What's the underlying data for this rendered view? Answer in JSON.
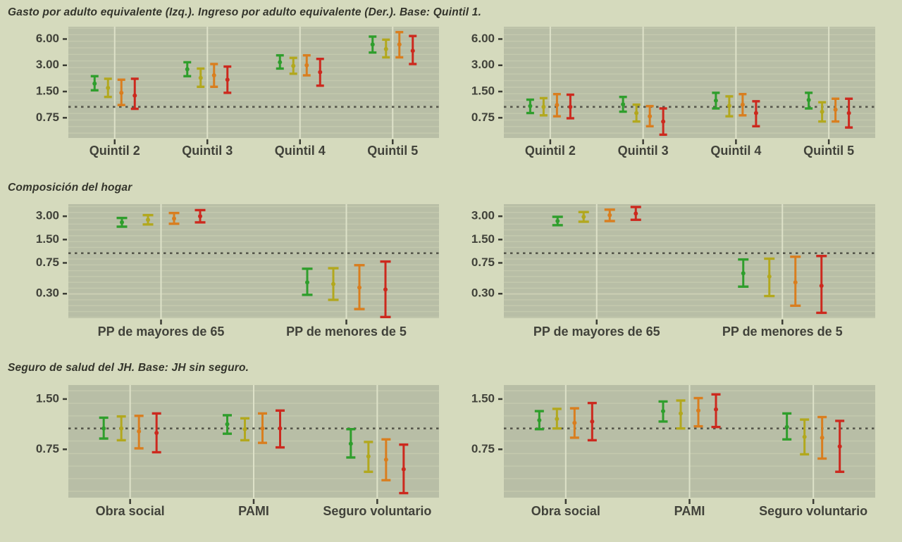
{
  "page": {
    "background": "#d5dabd"
  },
  "palette": {
    "panel_bg": "#b8bea6",
    "grid_minor": "#c4c9ae",
    "grid_major": "#cccfb4",
    "category_line": "#dde1c8",
    "ref_line": "#56574c",
    "tick_color": "#3c3d35",
    "axis_text_color": "#41423a",
    "title_color": "#33342b"
  },
  "series_colors": {
    "verde": "#2f9e2c",
    "amarillo": "#b2a81e",
    "naranja": "#d97e1f",
    "rojo": "#cc291e"
  },
  "chart_data": [
    {
      "type": "scatter",
      "title": "Gasto por adulto equivalente (Izq.). Ingreso por adulto equivalente (Der.). Base: Quintil 1.",
      "xlabel": "",
      "ylabel": "",
      "scale": "log2",
      "ylim": [
        0.44,
        8.3
      ],
      "ytick_values": [
        6.0,
        3.0,
        1.5,
        0.75
      ],
      "ytick_labels": [
        "6.00",
        "3.00",
        "1.50",
        "0.75"
      ],
      "ref_line": 1.0,
      "grid": true,
      "legend": "none",
      "categories": [
        "Quintil 2",
        "Quintil 3",
        "Quintil 4",
        "Quintil 5"
      ],
      "panels": [
        {
          "side": "left",
          "series": [
            {
              "name": "verde",
              "color": "#2f9e2c",
              "values": [
                [
                  1.85,
                  1.55,
                  2.25
                ],
                [
                  2.7,
                  2.25,
                  3.25
                ],
                [
                  3.25,
                  2.75,
                  3.9
                ],
                [
                  5.2,
                  4.2,
                  6.4
                ]
              ]
            },
            {
              "name": "amarillo",
              "color": "#b2a81e",
              "values": [
                [
                  1.65,
                  1.3,
                  2.1
                ],
                [
                  2.15,
                  1.7,
                  2.75
                ],
                [
                  2.95,
                  2.4,
                  3.65
                ],
                [
                  4.6,
                  3.7,
                  5.9
                ]
              ]
            },
            {
              "name": "naranja",
              "color": "#d97e1f",
              "values": [
                [
                  1.45,
                  1.05,
                  2.05
                ],
                [
                  2.3,
                  1.7,
                  3.1
                ],
                [
                  3.0,
                  2.3,
                  3.9
                ],
                [
                  5.2,
                  3.7,
                  7.2
                ]
              ]
            },
            {
              "name": "rojo",
              "color": "#cc291e",
              "values": [
                [
                  1.35,
                  0.95,
                  2.1
                ],
                [
                  2.05,
                  1.45,
                  2.9
                ],
                [
                  2.5,
                  1.75,
                  3.55
                ],
                [
                  4.4,
                  3.1,
                  6.5
                ]
              ]
            }
          ]
        },
        {
          "side": "right",
          "series": [
            {
              "name": "verde",
              "color": "#2f9e2c",
              "values": [
                [
                  1.02,
                  0.85,
                  1.21
                ],
                [
                  1.07,
                  0.88,
                  1.3
                ],
                [
                  1.18,
                  0.96,
                  1.45
                ],
                [
                  1.2,
                  0.96,
                  1.45
                ]
              ]
            },
            {
              "name": "amarillo",
              "color": "#b2a81e",
              "values": [
                [
                  1.0,
                  0.8,
                  1.26
                ],
                [
                  0.85,
                  0.68,
                  1.06
                ],
                [
                  1.03,
                  0.78,
                  1.32
                ],
                [
                  0.88,
                  0.68,
                  1.13
                ]
              ]
            },
            {
              "name": "naranja",
              "color": "#d97e1f",
              "values": [
                [
                  1.05,
                  0.78,
                  1.4
                ],
                [
                  0.78,
                  0.6,
                  1.02
                ],
                [
                  1.06,
                  0.8,
                  1.4
                ],
                [
                  0.93,
                  0.68,
                  1.24
                ]
              ]
            },
            {
              "name": "rojo",
              "color": "#cc291e",
              "values": [
                [
                  1.0,
                  0.74,
                  1.38
                ],
                [
                  0.68,
                  0.48,
                  0.96
                ],
                [
                  0.85,
                  0.6,
                  1.16
                ],
                [
                  0.85,
                  0.58,
                  1.24
                ]
              ]
            }
          ]
        }
      ]
    },
    {
      "type": "scatter",
      "title": "Composición del hogar",
      "xlabel": "",
      "ylabel": "",
      "scale": "log2",
      "ylim": [
        0.145,
        4.3
      ],
      "ytick_values": [
        3.0,
        1.5,
        0.75,
        0.3
      ],
      "ytick_labels": [
        "3.00",
        "1.50",
        "0.75",
        "0.30"
      ],
      "ref_line": 1.0,
      "grid": true,
      "legend": "none",
      "categories": [
        "PP de mayores de 65",
        "PP de menores de 5"
      ],
      "panels": [
        {
          "side": "left",
          "series": [
            {
              "name": "verde",
              "color": "#2f9e2c",
              "values": [
                [
                  2.5,
                  2.2,
                  2.85
                ],
                [
                  0.42,
                  0.29,
                  0.63
                ]
              ]
            },
            {
              "name": "amarillo",
              "color": "#b2a81e",
              "values": [
                [
                  2.7,
                  2.35,
                  3.1
                ],
                [
                  0.4,
                  0.25,
                  0.64
                ]
              ]
            },
            {
              "name": "naranja",
              "color": "#d97e1f",
              "values": [
                [
                  2.8,
                  2.4,
                  3.3
                ],
                [
                  0.36,
                  0.19,
                  0.7
                ]
              ]
            },
            {
              "name": "rojo",
              "color": "#cc291e",
              "values": [
                [
                  3.0,
                  2.5,
                  3.6
                ],
                [
                  0.34,
                  0.15,
                  0.78
                ]
              ]
            }
          ]
        },
        {
          "side": "right",
          "series": [
            {
              "name": "verde",
              "color": "#2f9e2c",
              "values": [
                [
                  2.6,
                  2.3,
                  2.95
                ],
                [
                  0.55,
                  0.37,
                  0.83
                ]
              ]
            },
            {
              "name": "amarillo",
              "color": "#b2a81e",
              "values": [
                [
                  2.95,
                  2.55,
                  3.4
                ],
                [
                  0.5,
                  0.28,
                  0.85
                ]
              ]
            },
            {
              "name": "naranja",
              "color": "#d97e1f",
              "values": [
                [
                  3.1,
                  2.6,
                  3.65
                ],
                [
                  0.42,
                  0.21,
                  0.9
                ]
              ]
            },
            {
              "name": "rojo",
              "color": "#cc291e",
              "values": [
                [
                  3.25,
                  2.7,
                  3.95
                ],
                [
                  0.38,
                  0.17,
                  0.92
                ]
              ]
            }
          ]
        }
      ]
    },
    {
      "type": "scatter",
      "title": "Seguro de salud del JH. Base: JH sin seguro.",
      "xlabel": "",
      "ylabel": "",
      "scale": "log2",
      "ylim": [
        0.385,
        1.82
      ],
      "ytick_values": [
        1.5,
        0.75
      ],
      "ytick_labels": [
        "1.50",
        "0.75"
      ],
      "ref_line": 1.0,
      "grid": true,
      "legend": "none",
      "categories": [
        "Obra social",
        "PAMI",
        "Seguro voluntario"
      ],
      "panels": [
        {
          "side": "left",
          "series": [
            {
              "name": "verde",
              "color": "#2f9e2c",
              "values": [
                [
                  1.0,
                  0.87,
                  1.16
                ],
                [
                  1.06,
                  0.93,
                  1.2
                ],
                [
                  0.81,
                  0.67,
                  0.99
                ]
              ]
            },
            {
              "name": "amarillo",
              "color": "#b2a81e",
              "values": [
                [
                  1.0,
                  0.85,
                  1.18
                ],
                [
                  0.99,
                  0.85,
                  1.15
                ],
                [
                  0.68,
                  0.55,
                  0.83
                ]
              ]
            },
            {
              "name": "naranja",
              "color": "#d97e1f",
              "values": [
                [
                  0.96,
                  0.76,
                  1.19
                ],
                [
                  1.0,
                  0.82,
                  1.23
                ],
                [
                  0.65,
                  0.49,
                  0.86
                ]
              ]
            },
            {
              "name": "rojo",
              "color": "#cc291e",
              "values": [
                [
                  0.94,
                  0.72,
                  1.23
                ],
                [
                  1.0,
                  0.77,
                  1.28
                ],
                [
                  0.57,
                  0.41,
                  0.8
                ]
              ]
            }
          ]
        },
        {
          "side": "right",
          "series": [
            {
              "name": "verde",
              "color": "#2f9e2c",
              "values": [
                [
                  1.12,
                  0.99,
                  1.27
                ],
                [
                  1.27,
                  1.1,
                  1.45
                ],
                [
                  1.02,
                  0.86,
                  1.23
                ]
              ]
            },
            {
              "name": "amarillo",
              "color": "#b2a81e",
              "values": [
                [
                  1.14,
                  1.0,
                  1.31
                ],
                [
                  1.23,
                  1.0,
                  1.47
                ],
                [
                  0.89,
                  0.7,
                  1.13
                ]
              ]
            },
            {
              "name": "naranja",
              "color": "#d97e1f",
              "values": [
                [
                  1.08,
                  0.88,
                  1.32
                ],
                [
                  1.28,
                  1.03,
                  1.52
                ],
                [
                  0.88,
                  0.66,
                  1.17
                ]
              ]
            },
            {
              "name": "rojo",
              "color": "#cc291e",
              "values": [
                [
                  1.1,
                  0.85,
                  1.42
                ],
                [
                  1.3,
                  1.02,
                  1.6
                ],
                [
                  0.78,
                  0.55,
                  1.11
                ]
              ]
            }
          ]
        }
      ]
    }
  ]
}
